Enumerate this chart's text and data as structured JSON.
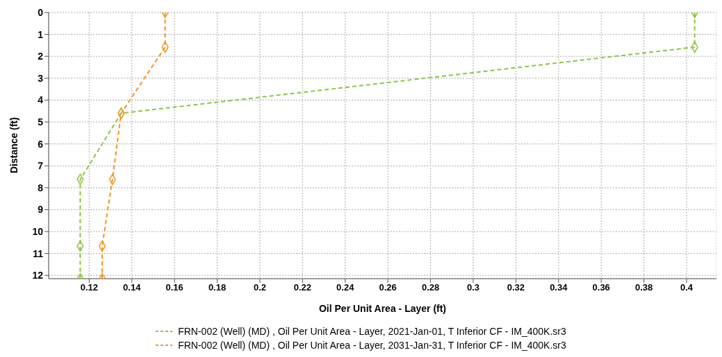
{
  "chart_data": {
    "type": "line",
    "xlabel": "Oil Per Unit Area - Layer (ft)",
    "ylabel": "Distance (ft)",
    "xlim": [
      0.101,
      0.414
    ],
    "xticks": [
      0.12,
      0.14,
      0.16,
      0.18,
      0.2,
      0.22,
      0.24,
      0.26,
      0.28,
      0.3,
      0.32,
      0.34,
      0.36,
      0.38,
      0.4
    ],
    "ylim": [
      12.15,
      0
    ],
    "yticks": [
      0,
      1,
      2,
      3,
      4,
      5,
      6,
      7,
      8,
      9,
      10,
      11,
      12
    ],
    "grid": true,
    "legend": "bottom",
    "marker": "diamond",
    "line_style": "dashed",
    "series": [
      {
        "name": "FRN-002 (Well) (MD) , Oil Per Unit Area - Layer, 2021-Jan-01, T Inferior CF - IM_400K.sr3",
        "color": "#8cc63f",
        "x": [
          0.4038,
          0.4038,
          0.135,
          0.1158,
          0.1158,
          0.1158
        ],
        "values": [
          0,
          1.58,
          4.6,
          7.62,
          10.66,
          12.15
        ]
      },
      {
        "name": "FRN-002 (Well) (MD) , Oil Per Unit Area - Layer, 2031-Jan-31, T Inferior CF - IM_400K.sr3",
        "color": "#f7941d",
        "x": [
          0.1556,
          0.1556,
          0.135,
          0.1309,
          0.1261,
          0.1261
        ],
        "values": [
          0,
          1.58,
          4.6,
          7.62,
          10.66,
          12.15
        ]
      }
    ]
  }
}
